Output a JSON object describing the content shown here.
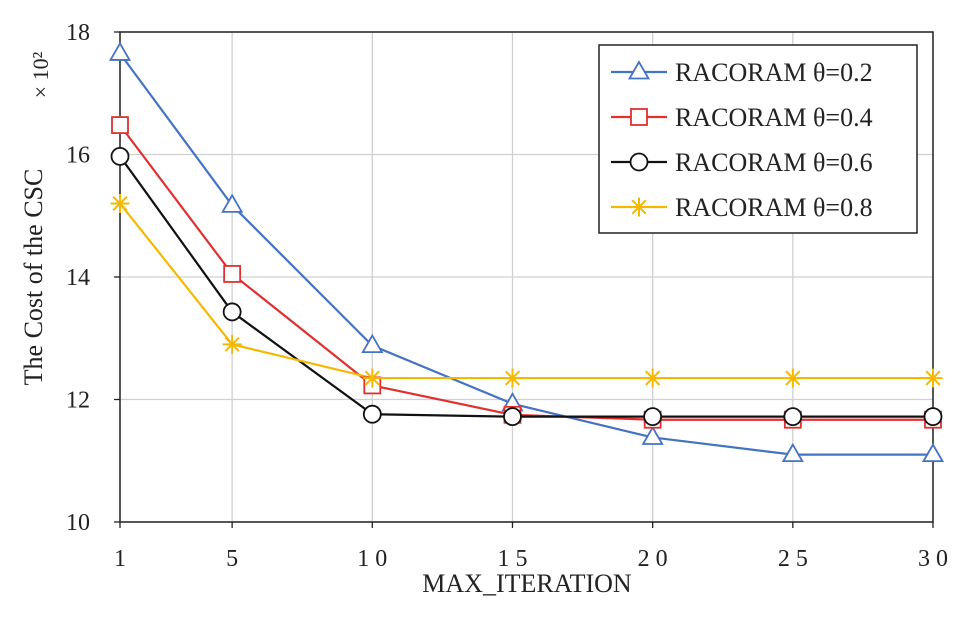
{
  "chart_data": {
    "type": "line",
    "x": [
      1,
      5,
      10,
      15,
      20,
      25,
      30
    ],
    "x_tick_labels": [
      "1",
      "5",
      "1 0",
      "1 5",
      "2 0",
      "2 5",
      "3 0"
    ],
    "y_tick_labels": [
      "10",
      "12",
      "14",
      "16",
      "18"
    ],
    "xlabel": "MAX_ITERATION",
    "ylabel": "The Cost of the CSC",
    "y_unit": "× 10²",
    "ylim": [
      10,
      18
    ],
    "xlim": [
      1,
      30
    ],
    "grid": true,
    "legend_position": "top-right",
    "series": [
      {
        "name": "RACORAM θ=0.2",
        "color": "#4472C4",
        "marker": "triangle",
        "values": [
          17.65,
          15.17,
          12.88,
          11.93,
          11.38,
          11.1,
          11.1
        ]
      },
      {
        "name": "RACORAM θ=0.4",
        "color": "#E03030",
        "marker": "square",
        "values": [
          16.48,
          14.05,
          12.23,
          11.75,
          11.67,
          11.67,
          11.67
        ]
      },
      {
        "name": "RACORAM θ=0.6",
        "color": "#111111",
        "marker": "circle",
        "values": [
          15.97,
          13.43,
          11.76,
          11.72,
          11.72,
          11.72,
          11.72
        ]
      },
      {
        "name": "RACORAM θ=0.8",
        "color": "#F5B800",
        "marker": "asterisk",
        "values": [
          15.2,
          12.9,
          12.35,
          12.35,
          12.35,
          12.35,
          12.35
        ]
      }
    ]
  }
}
